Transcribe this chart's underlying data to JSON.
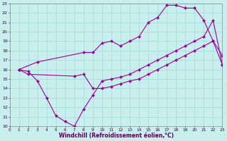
{
  "bg_color": "#c8eeee",
  "grid_color": "#aadddd",
  "line_color": "#990099",
  "xlim": [
    0,
    23
  ],
  "ylim": [
    10,
    23
  ],
  "xticks": [
    0,
    1,
    2,
    3,
    4,
    5,
    6,
    7,
    8,
    9,
    10,
    11,
    12,
    13,
    14,
    15,
    16,
    17,
    18,
    19,
    20,
    21,
    22,
    23
  ],
  "yticks": [
    10,
    11,
    12,
    13,
    14,
    15,
    16,
    17,
    18,
    19,
    20,
    21,
    22,
    23
  ],
  "xlabel": "Windchill (Refroidissement éolien,°C)",
  "line1_x": [
    1,
    2,
    3,
    4,
    5,
    6,
    7,
    8,
    9,
    10,
    11,
    12,
    13,
    14,
    15,
    16,
    17,
    18,
    19,
    20,
    21,
    22,
    23
  ],
  "line1_y": [
    16.0,
    15.8,
    14.8,
    13.0,
    11.1,
    10.5,
    10.0,
    11.8,
    13.3,
    14.8,
    15.0,
    15.2,
    15.5,
    16.0,
    16.5,
    17.0,
    17.5,
    18.0,
    18.5,
    19.0,
    19.5,
    21.2,
    16.5
  ],
  "line2_x": [
    1,
    3,
    8,
    9,
    10,
    11,
    12,
    13,
    14,
    15,
    16,
    17,
    18,
    19,
    20,
    21,
    22,
    23
  ],
  "line2_y": [
    16.0,
    16.8,
    17.8,
    17.8,
    18.8,
    19.0,
    18.5,
    19.0,
    19.5,
    21.0,
    21.5,
    22.8,
    22.8,
    22.5,
    22.5,
    21.2,
    19.0,
    17.5
  ],
  "line3_x": [
    1,
    2,
    7,
    8,
    9,
    10,
    11,
    12,
    13,
    14,
    15,
    16,
    17,
    18,
    19,
    20,
    21,
    22,
    23
  ],
  "line3_y": [
    16.0,
    15.5,
    15.3,
    15.5,
    14.0,
    14.0,
    14.2,
    14.5,
    14.8,
    15.0,
    15.5,
    16.0,
    16.5,
    17.0,
    17.5,
    18.0,
    18.5,
    19.0,
    16.5
  ]
}
